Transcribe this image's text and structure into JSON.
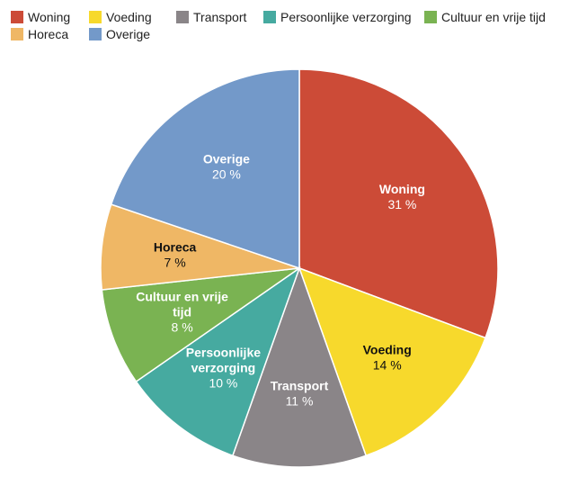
{
  "chart_data": {
    "type": "pie",
    "title": "",
    "legend_position": "top",
    "slices": [
      {
        "name": "Woning",
        "value": 31,
        "label": "31 %",
        "color": "#cc4b37",
        "text_color": "#ffffff",
        "name_lines": [
          "Woning"
        ]
      },
      {
        "name": "Voeding",
        "value": 14,
        "label": "14 %",
        "color": "#f7d92c",
        "text_color": "#111111",
        "name_lines": [
          "Voeding"
        ]
      },
      {
        "name": "Transport",
        "value": 11,
        "label": "11 %",
        "color": "#8a8588",
        "text_color": "#ffffff",
        "name_lines": [
          "Transport"
        ]
      },
      {
        "name": "Persoonlijke verzorging",
        "value": 10,
        "label": "10 %",
        "color": "#46aaa0",
        "text_color": "#ffffff",
        "name_lines": [
          "Persoonlijke",
          "verzorging"
        ]
      },
      {
        "name": "Cultuur en vrije tijd",
        "value": 8,
        "label": "8 %",
        "color": "#7ab352",
        "text_color": "#ffffff",
        "name_lines": [
          "Cultuur en vrije",
          "tijd"
        ]
      },
      {
        "name": "Horeca",
        "value": 7,
        "label": "7 %",
        "color": "#efb765",
        "text_color": "#111111",
        "name_lines": [
          "Horeca"
        ]
      },
      {
        "name": "Overige",
        "value": 20,
        "label": "20 %",
        "color": "#7399c9",
        "text_color": "#ffffff",
        "name_lines": [
          "Overige"
        ]
      }
    ]
  }
}
